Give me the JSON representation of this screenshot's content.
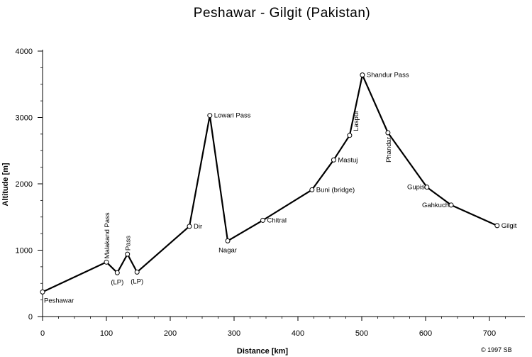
{
  "chart_data": {
    "type": "line",
    "title": "Peshawar - Gilgit (Pakistan)",
    "xlabel": "Distance [km]",
    "ylabel": "Altitude [m]",
    "xlim": [
      0,
      750
    ],
    "ylim": [
      0,
      4000
    ],
    "x_ticks": [
      "0",
      "100",
      "200",
      "300",
      "400",
      "500",
      "600",
      "700"
    ],
    "y_ticks": [
      "0",
      "1000",
      "2000",
      "3000",
      "4000"
    ],
    "copyright": "© 1997 SB",
    "points": [
      {
        "label": "Peshawar",
        "x": 0,
        "y": 370
      },
      {
        "label": "Malakand Pass",
        "x": 100,
        "y": 820
      },
      {
        "label": "(LP)",
        "x": 117,
        "y": 660
      },
      {
        "label": "Pass",
        "x": 133,
        "y": 940
      },
      {
        "label": "(LP)",
        "x": 148,
        "y": 670
      },
      {
        "label": "Dir",
        "x": 230,
        "y": 1360
      },
      {
        "label": "Lowari Pass",
        "x": 262,
        "y": 3030
      },
      {
        "label": "Nagar",
        "x": 290,
        "y": 1140
      },
      {
        "label": "Chitral",
        "x": 345,
        "y": 1450
      },
      {
        "label": "Buni (bridge)",
        "x": 422,
        "y": 1910
      },
      {
        "label": "Mastuj",
        "x": 456,
        "y": 2360
      },
      {
        "label": "Laspur",
        "x": 481,
        "y": 2730
      },
      {
        "label": "Shandur Pass",
        "x": 501,
        "y": 3640
      },
      {
        "label": "Phandar",
        "x": 541,
        "y": 2770
      },
      {
        "label": "Gupis",
        "x": 602,
        "y": 1950
      },
      {
        "label": "Gahkuch",
        "x": 640,
        "y": 1680
      },
      {
        "label": "Gilgit",
        "x": 712,
        "y": 1370
      }
    ]
  }
}
